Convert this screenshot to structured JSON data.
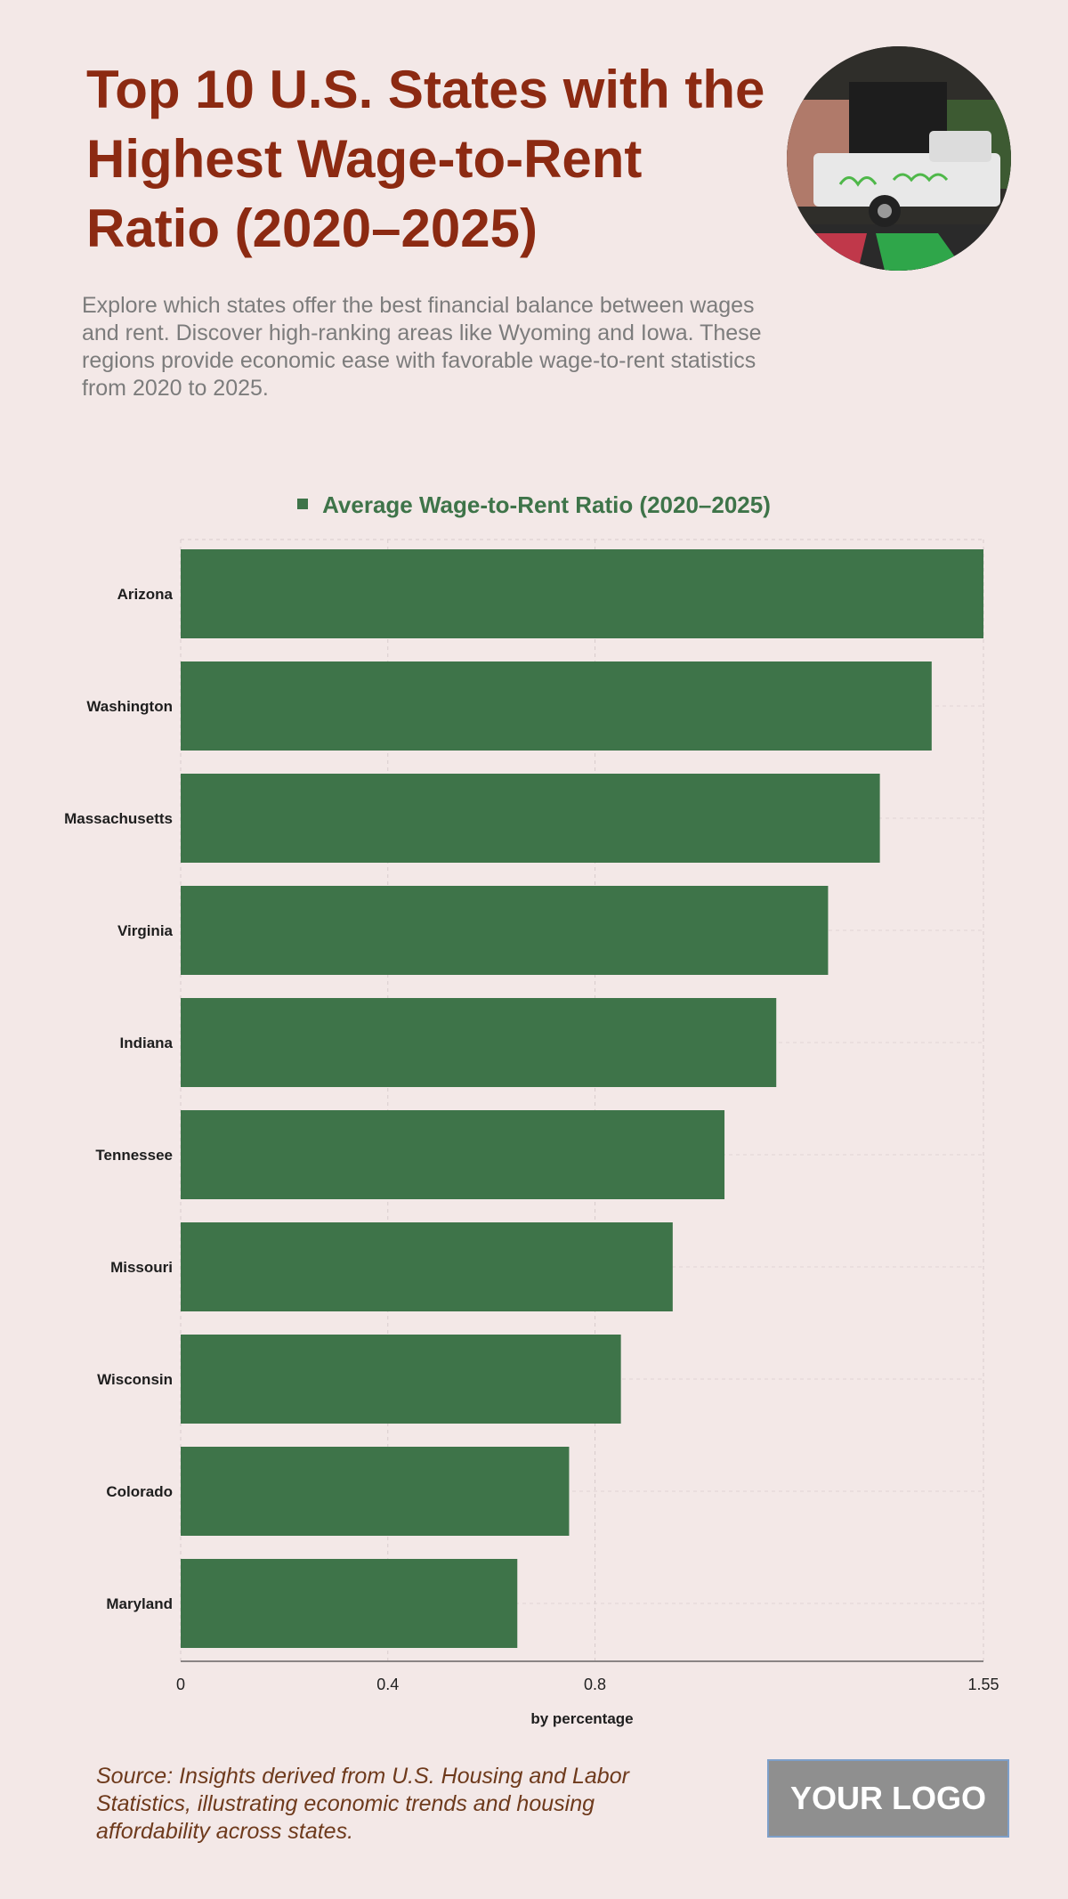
{
  "header": {
    "title": "Top 10 U.S. States with the Highest Wage-to-Rent Ratio (2020–2025)",
    "subtitle": "Explore which states offer the best financial balance between wages and rent. Discover high-ranking areas like Wyoming and Iowa. These regions provide economic ease with favorable wage-to-rent statistics from 2020 to 2025."
  },
  "chart_data": {
    "type": "bar",
    "orientation": "horizontal",
    "categories": [
      "Arizona",
      "Washington",
      "Massachusetts",
      "Virginia",
      "Indiana",
      "Tennessee",
      "Missouri",
      "Wisconsin",
      "Colorado",
      "Maryland"
    ],
    "series": [
      {
        "name": "Average Wage-to-Rent Ratio (2020–2025)",
        "values": [
          1.55,
          1.45,
          1.35,
          1.25,
          1.15,
          1.05,
          0.95,
          0.85,
          0.75,
          0.65
        ],
        "color": "#3e7449"
      }
    ],
    "xlabel": "by percentage",
    "ylabel": "",
    "xlim": [
      0,
      1.55
    ],
    "xticks": [
      0,
      0.4,
      0.8,
      1.55
    ],
    "xtick_labels": [
      "0",
      "0.4",
      "0.8",
      "1.55"
    ],
    "grid": true,
    "legend_position": "top-center"
  },
  "footer": {
    "source": "Source: Insights derived from U.S. Housing and Labor Statistics, illustrating economic trends and housing affordability across states.",
    "logo": "YOUR LOGO"
  }
}
